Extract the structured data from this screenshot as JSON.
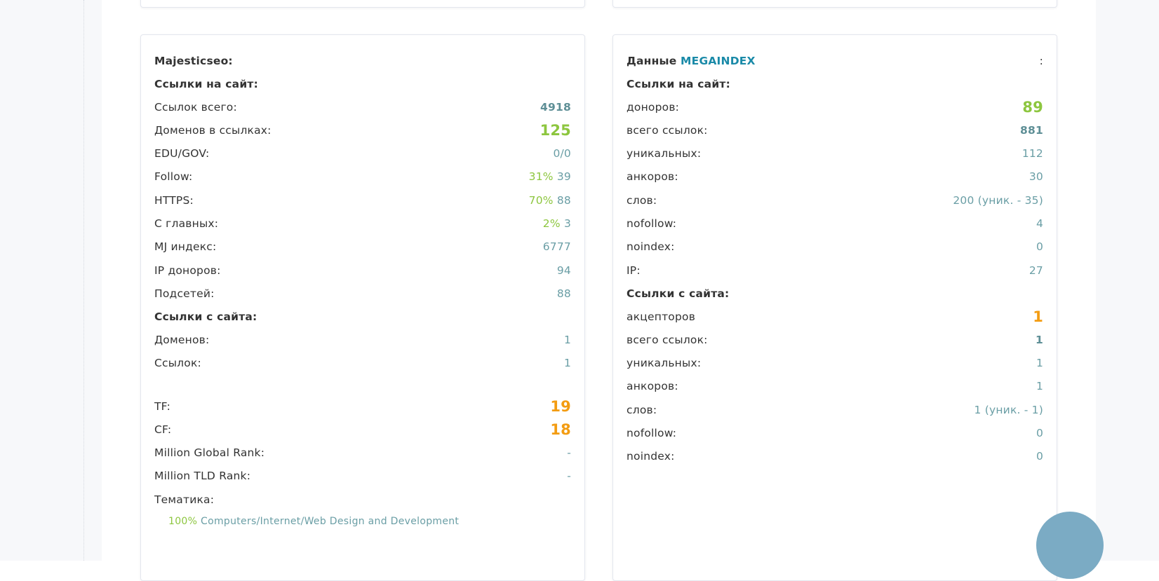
{
  "majestic": {
    "title": "Majesticseo:",
    "in_header": "Ссылки на сайт:",
    "in_rows": [
      {
        "label": "Ссылок всего:",
        "value": "4918",
        "style": "bold"
      },
      {
        "label": "Доменов в ссылках:",
        "value": "125",
        "style": "bg"
      },
      {
        "label": "EDU/GOV:",
        "value": "0/0",
        "style": "v"
      },
      {
        "label": "Follow:",
        "pct": "31%",
        "value": "39",
        "style": "v"
      },
      {
        "label": "HTTPS:",
        "pct": "70%",
        "value": "88",
        "style": "v"
      },
      {
        "label": "С главных:",
        "pct": "2%",
        "value": "3",
        "style": "v"
      },
      {
        "label": "MJ индекс:",
        "value": "6777",
        "style": "v"
      },
      {
        "label": "IP доноров:",
        "value": "94",
        "style": "v"
      },
      {
        "label": "Подсетей:",
        "value": "88",
        "style": "v"
      }
    ],
    "out_header": "Ссылки с сайта:",
    "out_rows": [
      {
        "label": "Доменов:",
        "value": "1",
        "style": "v"
      },
      {
        "label": "Ссылок:",
        "value": "1",
        "style": "v"
      }
    ],
    "extra_rows": [
      {
        "label": "TF:",
        "value": "19",
        "style": "bo"
      },
      {
        "label": "CF:",
        "value": "18",
        "style": "bo"
      },
      {
        "label": "Million Global Rank:",
        "value": "-",
        "style": "v"
      },
      {
        "label": "Million TLD Rank:",
        "value": "-",
        "style": "v"
      },
      {
        "label": "Тематика:",
        "value": "",
        "style": "v"
      }
    ],
    "topic": {
      "pct": "100%",
      "name": "Computers/Internet/Web Design and Development"
    }
  },
  "megaindex": {
    "title_prefix": "Данные",
    "brand": "MEGAINDEX",
    "title_suffix": ":",
    "in_header": "Ссылки на сайт:",
    "in_rows": [
      {
        "label": "доноров:",
        "value": "89",
        "style": "bg"
      },
      {
        "label": "всего ссылок:",
        "value": "881",
        "style": "bold"
      },
      {
        "label": "уникальных:",
        "value": "112",
        "style": "v"
      },
      {
        "label": "анкоров:",
        "value": "30",
        "style": "v"
      },
      {
        "label": "слов:",
        "value": "200 (уник. - 35)",
        "style": "v"
      },
      {
        "label": "nofollow:",
        "value": "4",
        "style": "v"
      },
      {
        "label": "noindex:",
        "value": "0",
        "style": "v"
      },
      {
        "label": "IP:",
        "value": "27",
        "style": "v"
      }
    ],
    "out_header": "Ссылки с сайта:",
    "out_rows": [
      {
        "label": "акцепторов",
        "value": "1",
        "style": "bo"
      },
      {
        "label": "всего ссылок:",
        "value": "1",
        "style": "bold"
      },
      {
        "label": "уникальных:",
        "value": "1",
        "style": "v"
      },
      {
        "label": "анкоров:",
        "value": "1",
        "style": "v"
      },
      {
        "label": "слов:",
        "value": "1 (уник. - 1)",
        "style": "v"
      },
      {
        "label": "nofollow:",
        "value": "0",
        "style": "v"
      },
      {
        "label": "noindex:",
        "value": "0",
        "style": "v"
      }
    ]
  },
  "colors": {
    "accent": "#1a8aa8",
    "value": "#6a9ea5",
    "green": "#8dc63f",
    "orange": "#f39c12"
  }
}
